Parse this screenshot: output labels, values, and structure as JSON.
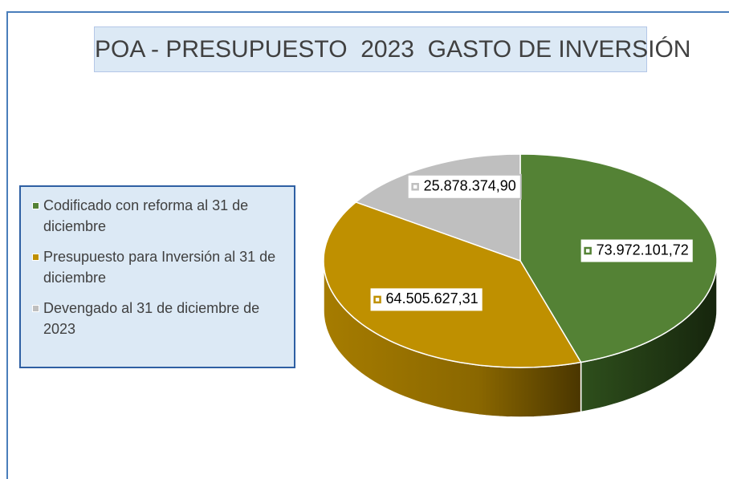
{
  "chart_data": {
    "type": "pie3d",
    "title": "POA - PRESUPUESTO  2023  GASTO DE INVERSIÓN",
    "categories": [
      "Codificado con reforma al 31 de diciembre",
      "Presupuesto  para Inversión al 31 de diciembre",
      "Devengado al 31 de diciembre de 2023"
    ],
    "values": [
      73972101.72,
      64505627.31,
      25878374.9
    ],
    "value_labels": [
      "73.972.101,72",
      "64.505.627,31",
      "25.878.374,90"
    ],
    "colors": [
      "#548235",
      "#bf9000",
      "#bfbfbf"
    ],
    "legend": "left"
  }
}
